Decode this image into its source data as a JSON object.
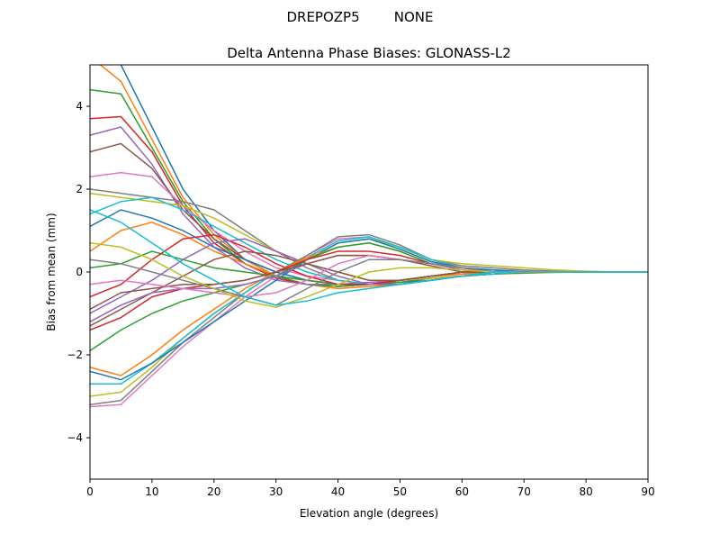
{
  "figure": {
    "suptitle": "DREPOZP5        NONE"
  },
  "chart_data": {
    "type": "line",
    "title": "Delta Antenna Phase Biases: GLONASS-L2",
    "xlabel": "Elevation angle (degrees)",
    "ylabel": "Bias from mean (mm)",
    "xlim": [
      0,
      90
    ],
    "ylim": [
      -5,
      5
    ],
    "xticks": [
      0,
      10,
      20,
      30,
      40,
      50,
      60,
      70,
      80,
      90
    ],
    "yticks": [
      -4,
      -2,
      0,
      2,
      4
    ],
    "grid": false,
    "legend": "none",
    "colors": [
      "#1f77b4",
      "#ff7f0e",
      "#2ca02c",
      "#d62728",
      "#9467bd",
      "#8c564b",
      "#e377c2",
      "#7f7f7f",
      "#bcbd22",
      "#17becf"
    ],
    "x": [
      0,
      5,
      10,
      15,
      20,
      25,
      30,
      35,
      40,
      45,
      50,
      55,
      60,
      65,
      70,
      75,
      80,
      85,
      90
    ],
    "series": [
      {
        "values": [
          5.5,
          5.0,
          3.5,
          2.0,
          1.0,
          0.3,
          -0.1,
          -0.3,
          -0.35,
          -0.3,
          -0.25,
          -0.2,
          -0.1,
          -0.05,
          -0.02,
          0,
          0,
          0,
          0
        ]
      },
      {
        "values": [
          5.2,
          4.6,
          3.2,
          1.8,
          0.9,
          0.3,
          -0.1,
          -0.3,
          -0.4,
          -0.35,
          -0.3,
          -0.2,
          -0.1,
          -0.05,
          -0.03,
          -0.01,
          0,
          0,
          0
        ]
      },
      {
        "values": [
          4.4,
          4.3,
          3.0,
          1.7,
          0.8,
          0.2,
          -0.1,
          -0.3,
          -0.35,
          -0.3,
          -0.25,
          -0.15,
          -0.1,
          -0.05,
          -0.02,
          0,
          0,
          0,
          0
        ]
      },
      {
        "values": [
          3.7,
          3.75,
          2.9,
          1.6,
          0.7,
          0.2,
          -0.15,
          -0.3,
          -0.3,
          -0.3,
          -0.2,
          -0.15,
          -0.1,
          -0.05,
          0,
          0,
          0,
          0,
          0
        ]
      },
      {
        "values": [
          3.3,
          3.5,
          2.6,
          1.4,
          0.6,
          0.1,
          -0.2,
          -0.3,
          -0.3,
          -0.25,
          -0.2,
          -0.1,
          -0.05,
          0,
          0,
          0,
          0,
          0,
          0
        ]
      },
      {
        "values": [
          2.9,
          3.1,
          2.5,
          1.5,
          0.8,
          0.3,
          0,
          -0.2,
          -0.3,
          -0.3,
          -0.2,
          -0.1,
          -0.05,
          0,
          0,
          0,
          0,
          0,
          0
        ]
      },
      {
        "values": [
          2.3,
          2.4,
          2.3,
          1.6,
          1.0,
          0.5,
          0.1,
          -0.1,
          -0.2,
          -0.3,
          -0.2,
          -0.1,
          -0.05,
          0,
          0,
          0,
          0,
          0,
          0
        ]
      },
      {
        "values": [
          2.0,
          1.9,
          1.8,
          1.7,
          1.5,
          1.0,
          0.5,
          0.1,
          -0.2,
          -0.3,
          -0.3,
          -0.2,
          -0.1,
          -0.05,
          0,
          0,
          0,
          0,
          0
        ]
      },
      {
        "values": [
          1.9,
          1.8,
          1.7,
          1.6,
          1.3,
          0.9,
          0.5,
          0.2,
          0,
          -0.2,
          -0.2,
          -0.15,
          -0.1,
          0,
          0,
          0,
          0,
          0,
          0
        ]
      },
      {
        "values": [
          1.4,
          1.7,
          1.8,
          1.5,
          1.1,
          0.7,
          0.3,
          0,
          -0.2,
          -0.3,
          -0.3,
          -0.2,
          -0.1,
          -0.05,
          0,
          0,
          0,
          0,
          0
        ]
      },
      {
        "values": [
          1.1,
          1.5,
          1.3,
          1.0,
          0.6,
          0.3,
          0,
          -0.2,
          -0.3,
          -0.3,
          -0.3,
          -0.2,
          -0.1,
          0,
          0,
          0,
          0,
          0,
          0
        ]
      },
      {
        "values": [
          0.5,
          1.0,
          1.2,
          0.9,
          0.5,
          0.2,
          -0.1,
          -0.2,
          -0.3,
          -0.3,
          -0.2,
          -0.1,
          -0.05,
          0,
          0,
          0,
          0,
          0,
          0
        ]
      },
      {
        "values": [
          0.1,
          0.2,
          0.5,
          0.3,
          0.1,
          0,
          -0.1,
          -0.2,
          -0.3,
          -0.3,
          -0.2,
          -0.1,
          0,
          0,
          0,
          0,
          0,
          0,
          0
        ]
      },
      {
        "values": [
          -0.6,
          -0.3,
          0.3,
          0.8,
          0.9,
          0.6,
          0.2,
          -0.1,
          -0.3,
          -0.3,
          -0.2,
          -0.1,
          0,
          0,
          0,
          0,
          0,
          0,
          0
        ]
      },
      {
        "values": [
          -1.0,
          -0.6,
          -0.2,
          0.3,
          0.7,
          0.8,
          0.5,
          0.2,
          -0.1,
          -0.3,
          -0.3,
          -0.2,
          -0.1,
          0,
          0,
          0,
          0,
          0,
          0
        ]
      },
      {
        "values": [
          -1.3,
          -0.9,
          -0.5,
          -0.1,
          0.3,
          0.5,
          0.4,
          0.2,
          0,
          -0.2,
          -0.2,
          -0.1,
          0,
          0,
          0,
          0,
          0,
          0,
          0
        ]
      },
      {
        "values": [
          -3.25,
          -3.2,
          -2.5,
          -1.8,
          -1.2,
          -0.6,
          -0.1,
          0.4,
          0.8,
          0.85,
          0.6,
          0.3,
          0.1,
          0.05,
          0.03,
          0.01,
          0,
          0,
          0
        ]
      },
      {
        "values": [
          -3.2,
          -3.1,
          -2.4,
          -1.7,
          -1.1,
          -0.5,
          0,
          0.4,
          0.85,
          0.9,
          0.65,
          0.3,
          0.15,
          0.1,
          0.05,
          0.02,
          0.01,
          0,
          0
        ]
      },
      {
        "values": [
          -3.0,
          -2.9,
          -2.3,
          -1.6,
          -1.0,
          -0.5,
          0,
          0.3,
          0.7,
          0.8,
          0.6,
          0.3,
          0.2,
          0.15,
          0.1,
          0.05,
          0.02,
          0,
          0
        ]
      },
      {
        "values": [
          -2.7,
          -2.7,
          -2.2,
          -1.6,
          -1.0,
          -0.5,
          0,
          0.35,
          0.75,
          0.85,
          0.6,
          0.3,
          0.1,
          0.05,
          0,
          0,
          0,
          0,
          0
        ]
      },
      {
        "values": [
          -2.4,
          -2.6,
          -2.2,
          -1.7,
          -1.2,
          -0.7,
          -0.2,
          0.3,
          0.7,
          0.8,
          0.55,
          0.25,
          0.1,
          0.05,
          0,
          0,
          0,
          0,
          0
        ]
      },
      {
        "values": [
          -2.3,
          -2.5,
          -2.0,
          -1.4,
          -0.9,
          -0.4,
          0,
          0.35,
          0.6,
          0.7,
          0.5,
          0.2,
          0.1,
          0,
          0,
          0,
          0,
          0,
          0
        ]
      },
      {
        "values": [
          -1.9,
          -1.4,
          -1.0,
          -0.7,
          -0.5,
          -0.3,
          -0.1,
          0.3,
          0.6,
          0.7,
          0.5,
          0.2,
          0.1,
          0,
          0,
          0,
          0,
          0,
          0
        ]
      },
      {
        "values": [
          -1.4,
          -1.1,
          -0.6,
          -0.4,
          -0.3,
          -0.2,
          0,
          0.3,
          0.5,
          0.5,
          0.4,
          0.2,
          0.1,
          0,
          0,
          0,
          0,
          0,
          0
        ]
      },
      {
        "values": [
          -1.2,
          -0.8,
          -0.5,
          -0.4,
          -0.4,
          -0.3,
          -0.1,
          0.2,
          0.4,
          0.4,
          0.3,
          0.2,
          0.05,
          0,
          0,
          0,
          0,
          0,
          0
        ]
      },
      {
        "values": [
          -0.9,
          -0.5,
          -0.4,
          -0.3,
          -0.3,
          -0.2,
          0,
          0.2,
          0.4,
          0.4,
          0.3,
          0.15,
          0,
          0,
          0,
          0,
          0,
          0,
          0
        ]
      },
      {
        "values": [
          -0.3,
          -0.2,
          -0.3,
          -0.4,
          -0.5,
          -0.6,
          -0.5,
          -0.2,
          0.2,
          0.4,
          0.3,
          0.2,
          0.1,
          0,
          0,
          0,
          0,
          0,
          0
        ]
      },
      {
        "values": [
          0.3,
          0.2,
          0,
          -0.2,
          -0.4,
          -0.6,
          -0.8,
          -0.4,
          0,
          0.3,
          0.3,
          0.2,
          0.1,
          0,
          0,
          0,
          0,
          0,
          0
        ]
      },
      {
        "values": [
          0.7,
          0.6,
          0.3,
          -0.1,
          -0.4,
          -0.7,
          -0.85,
          -0.6,
          -0.3,
          0,
          0.1,
          0.1,
          0.05,
          0,
          0,
          0,
          0,
          0,
          0
        ]
      },
      {
        "values": [
          1.5,
          1.2,
          0.7,
          0.2,
          -0.2,
          -0.6,
          -0.8,
          -0.7,
          -0.5,
          -0.4,
          -0.3,
          -0.2,
          -0.1,
          0,
          0,
          0,
          0,
          0,
          0
        ]
      }
    ]
  }
}
